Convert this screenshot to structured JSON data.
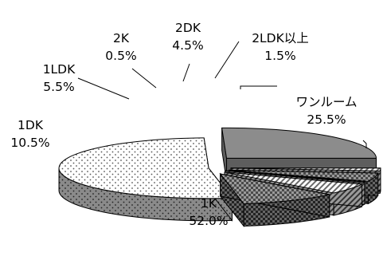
{
  "chart_data": {
    "type": "pie",
    "style": "3d-exploded",
    "title": "",
    "legend": "none",
    "slices": [
      {
        "name": "ワンルーム",
        "value": 25.5,
        "value_label": "25.5%",
        "fill": "#8c8c8c",
        "pattern": "solid-gray"
      },
      {
        "name": "1K",
        "value": 52.0,
        "value_label": "52.0%",
        "fill": "#ffffff",
        "pattern": "dots"
      },
      {
        "name": "1DK",
        "value": 10.5,
        "value_label": "10.5%",
        "fill": "#8c8c8c",
        "pattern": "dark-checker"
      },
      {
        "name": "1LDK",
        "value": 5.5,
        "value_label": "5.5%",
        "fill": "#ffffff",
        "pattern": "diagonal-hatch"
      },
      {
        "name": "2K",
        "value": 0.5,
        "value_label": "0.5%",
        "fill": "#ffffff",
        "pattern": "diagonal-hatch"
      },
      {
        "name": "2DK",
        "value": 4.5,
        "value_label": "4.5%",
        "fill": "#555555",
        "pattern": "dark-checker"
      },
      {
        "name": "2LDK以上",
        "value": 1.5,
        "value_label": "1.5%",
        "fill": "#ffffff",
        "pattern": "diagonal-hatch"
      }
    ]
  }
}
